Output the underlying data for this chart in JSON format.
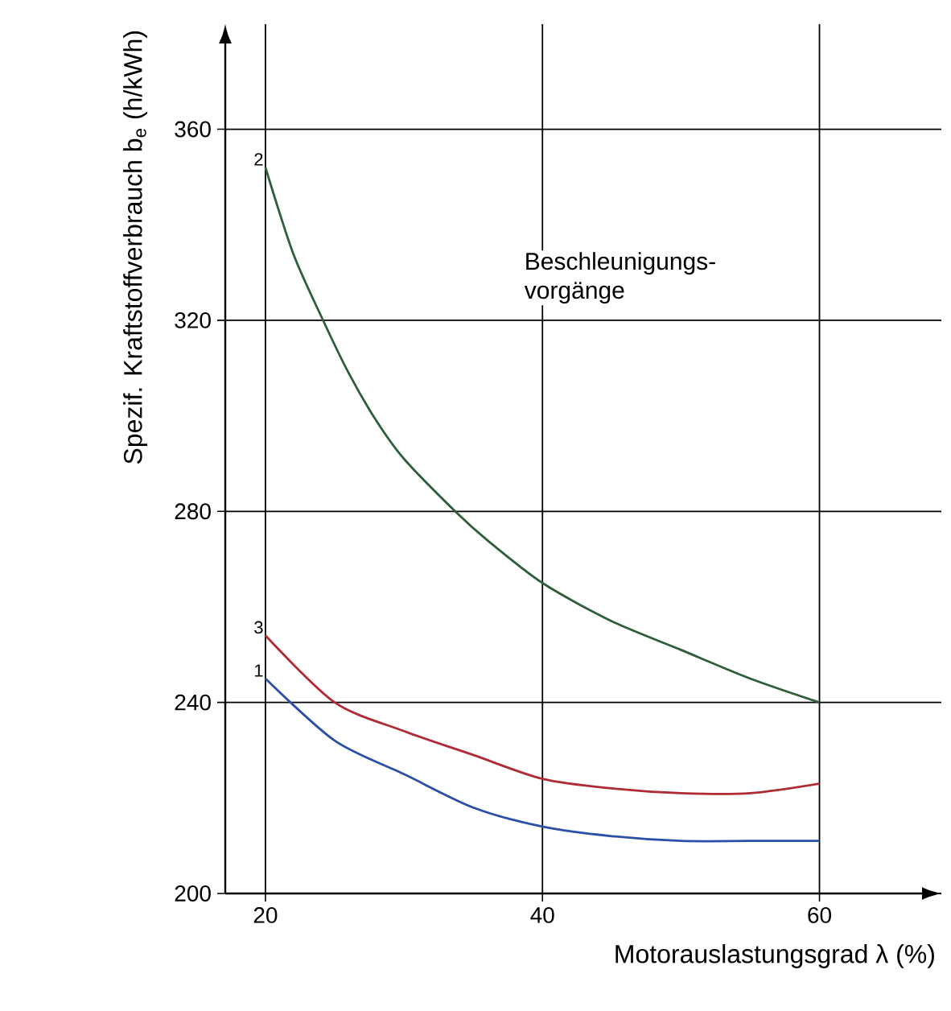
{
  "chart_data": {
    "type": "line",
    "xlabel": "Motorauslastungsgrad λ (%)",
    "ylabel": "Spezif. Kraftstoffverbrauch b$_{e}$ (h/kWh)",
    "xlim": [
      17.1,
      68.8
    ],
    "ylim": [
      200,
      382
    ],
    "xticks": [
      20,
      40,
      60
    ],
    "yticks": [
      200,
      240,
      280,
      320,
      360
    ],
    "grid": true,
    "legend": false,
    "marker": "none",
    "line_style": "solid",
    "annotations": [
      "Beschleunigungs-vorgänge"
    ],
    "series": [
      {
        "name": "1",
        "color": "#2b4fa8",
        "x": [
          20,
          25,
          30,
          35,
          40,
          45,
          50,
          55,
          60
        ],
        "values": [
          245,
          232,
          225,
          218,
          214,
          212,
          211,
          211,
          211
        ]
      },
      {
        "name": "2",
        "color": "#2e5e3a",
        "x": [
          20,
          22,
          24,
          26,
          28,
          30,
          33.7,
          36,
          40,
          45,
          50,
          55,
          60
        ],
        "values": [
          352,
          334,
          321,
          309,
          299,
          291,
          280,
          274,
          265,
          257,
          251,
          245,
          240
        ]
      },
      {
        "name": "3",
        "color": "#b02a35",
        "x": [
          20,
          25,
          30,
          35,
          40,
          45,
          50,
          55,
          60
        ],
        "values": [
          254,
          240,
          234,
          229,
          224,
          222,
          221,
          221,
          223
        ]
      }
    ]
  }
}
